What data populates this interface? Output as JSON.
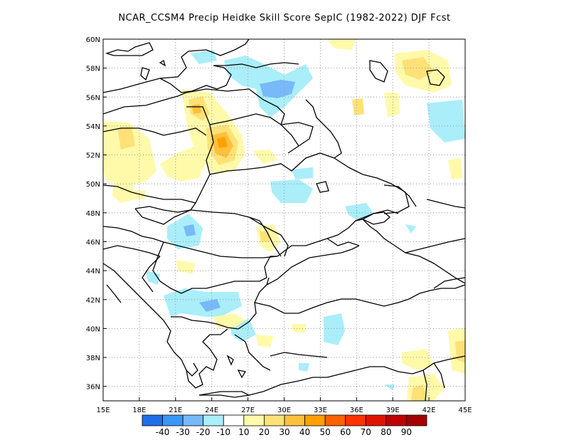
{
  "title": "NCAR_CCSM4 Precip Heidke Skill Score SepIC (1982-2022) DJF Fcst",
  "map": {
    "lon_range": [
      15,
      45
    ],
    "lat_range": [
      35,
      60
    ],
    "x_ticks": [
      "15E",
      "18E",
      "21E",
      "24E",
      "27E",
      "30E",
      "33E",
      "36E",
      "39E",
      "42E",
      "45E"
    ],
    "y_ticks": [
      "36N",
      "38N",
      "40N",
      "42N",
      "44N",
      "46N",
      "48N",
      "50N",
      "52N",
      "54N",
      "56N",
      "58N",
      "60N"
    ],
    "grid": "dotted"
  },
  "colorbar": {
    "labels": [
      "-40",
      "-30",
      "-20",
      "-10",
      "10",
      "20",
      "30",
      "40",
      "50",
      "60",
      "70",
      "80",
      "90"
    ],
    "colors": [
      "#1e6eeb",
      "#3c96f5",
      "#78b9fa",
      "#aaeefa",
      "#ffffff",
      "#fffaaa",
      "#ffe178",
      "#ffc03c",
      "#ffa000",
      "#ff6000",
      "#ff3200",
      "#e11400",
      "#c00000",
      "#a50000"
    ]
  }
}
